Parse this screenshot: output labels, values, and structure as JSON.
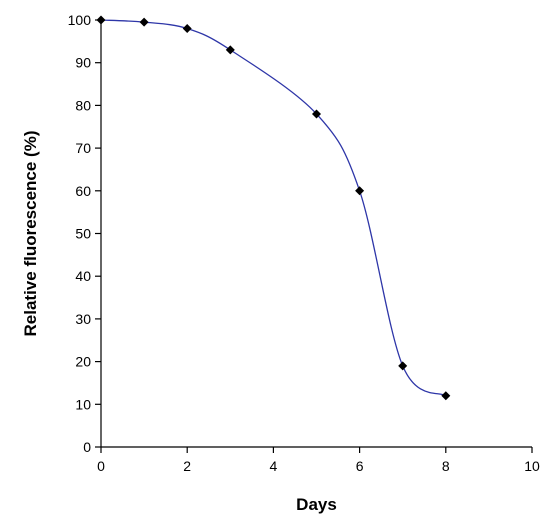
{
  "chart_data": {
    "type": "line",
    "title": "",
    "xlabel": "Days",
    "ylabel": "Relative fluorescence (%)",
    "xlim": [
      0,
      10
    ],
    "ylim": [
      0,
      100
    ],
    "xticks": [
      0,
      2,
      4,
      6,
      8,
      10
    ],
    "yticks": [
      0,
      10,
      20,
      30,
      40,
      50,
      60,
      70,
      80,
      90,
      100
    ],
    "grid": false,
    "legend": "none",
    "series": [
      {
        "x": [
          0,
          1,
          2,
          3,
          5,
          6,
          7,
          8
        ],
        "y": [
          100,
          99.5,
          98,
          93,
          78,
          60,
          19,
          12
        ],
        "line_color": "#2e36a8",
        "marker_color": "#000000",
        "marker": "diamond",
        "smooth": true
      }
    ]
  }
}
